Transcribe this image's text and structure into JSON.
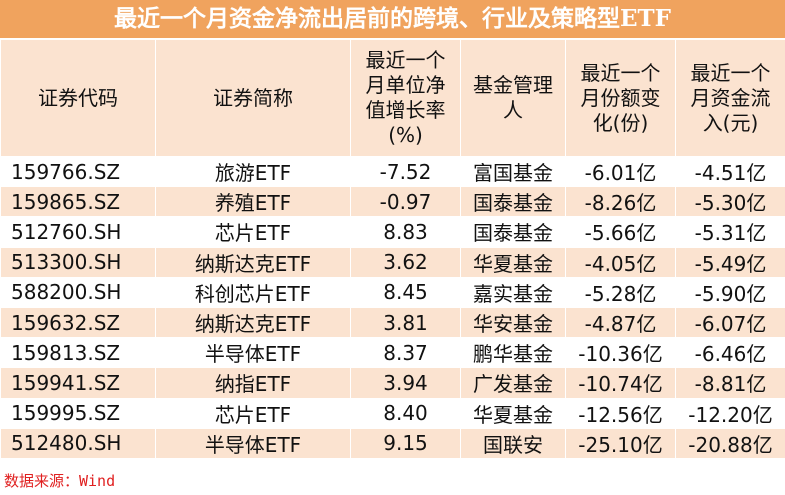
{
  "header": {
    "title": "最近一个月资金净流出居前的跨境、行业及策略型ETF"
  },
  "table": {
    "columns": [
      [
        "证券代码"
      ],
      [
        "证券简称"
      ],
      [
        "最近一个",
        "月单位净",
        "值增长率",
        "(%)"
      ],
      [
        "基金管理",
        "人"
      ],
      [
        "最近一个",
        "月份额变",
        "化(份)"
      ],
      [
        "最近一个",
        "月资金流",
        "入(元)"
      ]
    ],
    "rows": [
      [
        "159766.SZ",
        "旅游ETF",
        "-7.52",
        "富国基金",
        "-6.01亿",
        "-4.51亿"
      ],
      [
        "159865.SZ",
        "养殖ETF",
        "-0.97",
        "国泰基金",
        "-8.26亿",
        "-5.30亿"
      ],
      [
        "512760.SH",
        "芯片ETF",
        "8.83",
        "国泰基金",
        "-5.66亿",
        "-5.31亿"
      ],
      [
        "513300.SH",
        "纳斯达克ETF",
        "3.62",
        "华夏基金",
        "-4.05亿",
        "-5.49亿"
      ],
      [
        "588200.SH",
        "科创芯片ETF",
        "8.45",
        "嘉实基金",
        "-5.28亿",
        "-5.90亿"
      ],
      [
        "159632.SZ",
        "纳斯达克ETF",
        "3.81",
        "华安基金",
        "-4.87亿",
        "-6.07亿"
      ],
      [
        "159813.SZ",
        "半导体ETF",
        "8.37",
        "鹏华基金",
        "-10.36亿",
        "-6.46亿"
      ],
      [
        "159941.SZ",
        "纳指ETF",
        "3.94",
        "广发基金",
        "-10.74亿",
        "-8.81亿"
      ],
      [
        "159995.SZ",
        "芯片ETF",
        "8.40",
        "华夏基金",
        "-12.56亿",
        "-12.20亿"
      ],
      [
        "512480.SH",
        "半导体ETF",
        "9.15",
        "国联安",
        "-25.10亿",
        "-20.88亿"
      ]
    ]
  },
  "footer": {
    "source": "数据来源：Wind"
  }
}
